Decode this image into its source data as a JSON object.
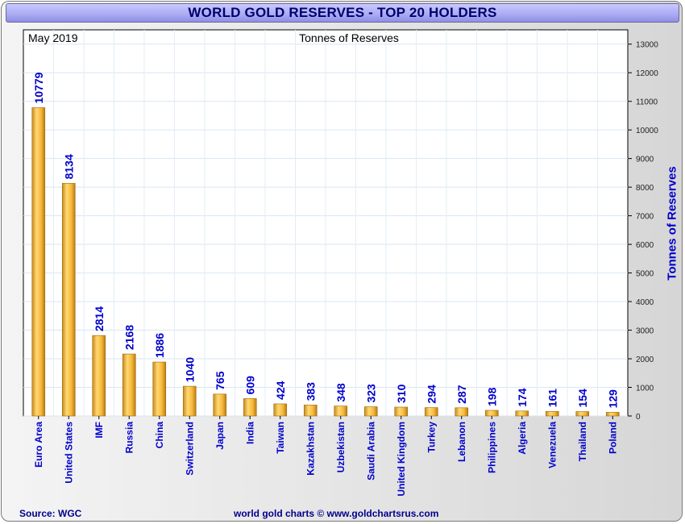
{
  "header": {
    "title": "WORLD GOLD RESERVES - TOP 20 HOLDERS"
  },
  "footer": {
    "source": "Source: WGC",
    "credit": "world gold charts © www.goldchartsrus.com"
  },
  "colors": {
    "title_bar": "#a9a9f2",
    "title_text": "#00006e",
    "bar_fill": "#f6b93a",
    "label_color": "#0000cc"
  },
  "chart_data": {
    "type": "bar",
    "date_label": "May 2019",
    "title": "Tonnes of Reserves",
    "ylabel": "Tonnes of Reserves",
    "xlabel": "",
    "ylim": [
      0,
      13500
    ],
    "yticks": [
      0,
      1000,
      2000,
      3000,
      4000,
      5000,
      6000,
      7000,
      8000,
      9000,
      10000,
      11000,
      12000,
      13000
    ],
    "y_axis_position": "right",
    "grid": true,
    "categories": [
      "Euro Area",
      "United States",
      "IMF",
      "Russia",
      "China",
      "Switzerland",
      "Japan",
      "India",
      "Taiwan",
      "Kazakhstan",
      "Uzbekistan",
      "Saudi Arabia",
      "United Kingdom",
      "Turkey",
      "Lebanon",
      "Philippines",
      "Algeria",
      "Venezuela",
      "Thailand",
      "Poland"
    ],
    "values": [
      10779,
      8134,
      2814,
      2168,
      1886,
      1040,
      765,
      609,
      424,
      383,
      348,
      323,
      310,
      294,
      287,
      198,
      174,
      161,
      154,
      129
    ]
  }
}
